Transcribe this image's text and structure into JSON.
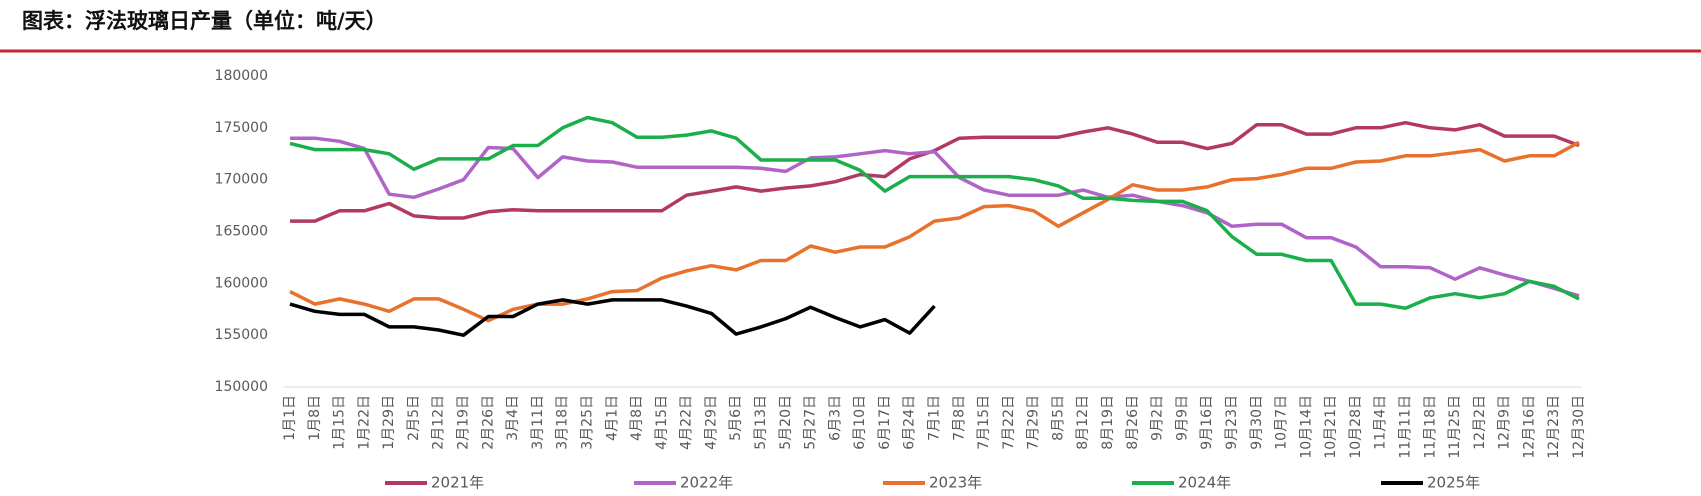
{
  "chart_data": {
    "type": "line",
    "title": "图表：浮法玻璃日产量（单位：吨/天）",
    "categories": [
      "1月1日",
      "1月8日",
      "1月15日",
      "1月22日",
      "1月29日",
      "2月5日",
      "2月12日",
      "2月19日",
      "2月26日",
      "3月4日",
      "3月11日",
      "3月18日",
      "3月25日",
      "4月1日",
      "4月8日",
      "4月15日",
      "4月22日",
      "4月29日",
      "5月6日",
      "5月13日",
      "5月20日",
      "5月27日",
      "6月3日",
      "6月10日",
      "6月17日",
      "6月24日",
      "7月1日",
      "7月8日",
      "7月15日",
      "7月22日",
      "7月29日",
      "8月5日",
      "8月12日",
      "8月19日",
      "8月26日",
      "9月2日",
      "9月9日",
      "9月16日",
      "9月23日",
      "9月30日",
      "10月7日",
      "10月14日",
      "10月21日",
      "10月28日",
      "11月4日",
      "11月11日",
      "11月18日",
      "11月25日",
      "12月2日",
      "12月9日",
      "12月16日",
      "12月23日",
      "12月30日"
    ],
    "series": [
      {
        "name": "2021年",
        "color": "#b23a62",
        "values": [
          166000,
          166000,
          167000,
          167000,
          167700,
          166500,
          166300,
          166300,
          166900,
          167100,
          167000,
          167000,
          167000,
          167000,
          167000,
          167000,
          168500,
          168900,
          169300,
          168900,
          169200,
          169400,
          169800,
          170500,
          170300,
          172000,
          172800,
          174000,
          174100,
          174100,
          174100,
          174100,
          174600,
          175000,
          174400,
          173600,
          173600,
          173000,
          173500,
          175300,
          175300,
          174400,
          174400,
          175000,
          175000,
          175500,
          175000,
          174800,
          175300,
          174200,
          174200,
          174200,
          173300
        ]
      },
      {
        "name": "2022年",
        "color": "#b064c8",
        "values": [
          174000,
          174000,
          173700,
          173000,
          168600,
          168300,
          169100,
          170000,
          173100,
          173000,
          170200,
          172200,
          171800,
          171700,
          171200,
          171200,
          171200,
          171200,
          171200,
          171100,
          170800,
          172100,
          172200,
          172500,
          172800,
          172500,
          172700,
          170200,
          169000,
          168500,
          168500,
          168500,
          169000,
          168300,
          168500,
          167900,
          167500,
          166800,
          165500,
          165700,
          165700,
          164400,
          164400,
          163500,
          161600,
          161600,
          161500,
          160400,
          161500,
          160800,
          160200,
          159500,
          158800
        ]
      },
      {
        "name": "2023年",
        "color": "#e8722d",
        "values": [
          159200,
          158000,
          158500,
          158000,
          157300,
          158500,
          158500,
          157500,
          156400,
          157500,
          158000,
          158000,
          158500,
          159200,
          159300,
          160500,
          161200,
          161700,
          161300,
          162200,
          162200,
          163600,
          163000,
          163500,
          163500,
          164500,
          166000,
          166300,
          167400,
          167500,
          167000,
          165500,
          166800,
          168100,
          169500,
          169000,
          169000,
          169300,
          170000,
          170100,
          170500,
          171100,
          171100,
          171700,
          171800,
          172300,
          172300,
          172600,
          172900,
          171800,
          172300,
          172300,
          173600
        ]
      },
      {
        "name": "2024年",
        "color": "#1aaf4b",
        "values": [
          173500,
          172900,
          172900,
          172900,
          172500,
          171000,
          172000,
          172000,
          172000,
          173300,
          173300,
          175000,
          176000,
          175500,
          174100,
          174100,
          174300,
          174700,
          174000,
          171900,
          171900,
          171900,
          171900,
          170900,
          168900,
          170300,
          170300,
          170300,
          170300,
          170300,
          170000,
          169400,
          168200,
          168200,
          168000,
          167900,
          167900,
          167000,
          164500,
          162800,
          162800,
          162200,
          162200,
          158000,
          158000,
          157600,
          158600,
          159000,
          158600,
          159000,
          160200,
          159700,
          158500
        ]
      },
      {
        "name": "2025年",
        "color": "#000000",
        "values": [
          158000,
          157300,
          157000,
          157000,
          155800,
          155800,
          155500,
          155000,
          156800,
          156800,
          158000,
          158400,
          158000,
          158400,
          158400,
          158400,
          157800,
          157100,
          155100,
          155800,
          156600,
          157700,
          156700,
          155800,
          156500,
          155200,
          157800,
          null,
          null,
          null,
          null,
          null,
          null,
          null,
          null,
          null,
          null,
          null,
          null,
          null,
          null,
          null,
          null,
          null,
          null,
          null,
          null,
          null,
          null,
          null,
          null,
          null,
          null
        ]
      }
    ],
    "ylim": [
      150000,
      180000
    ],
    "yticks": [
      150000,
      155000,
      160000,
      165000,
      170000,
      175000,
      180000
    ],
    "grid": false,
    "legend": "bottom"
  }
}
